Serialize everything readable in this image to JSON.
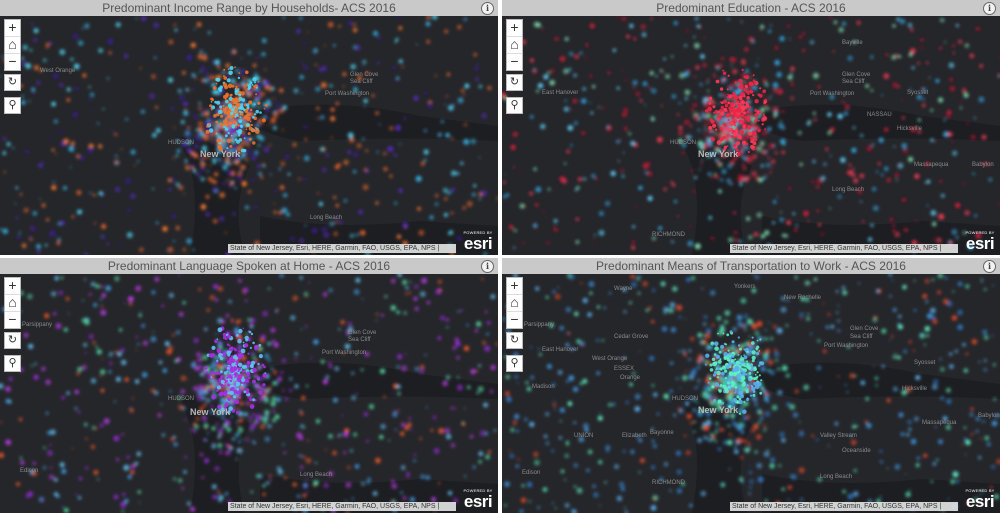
{
  "panels": [
    {
      "title": "Predominant Income Range by Households- ACS 2016",
      "palette": [
        "#35b3e5",
        "#4fd6f3",
        "#e8642a",
        "#ff7a2e",
        "#5b2bd1",
        "#3a1c9a"
      ],
      "core": "#f0712c",
      "places": {
        "west_orange": "West Orange",
        "glen_cove": "Glen Cove",
        "sea_cliff": "Sea Cliff",
        "port_washington": "Port Washington",
        "new_york": "New York",
        "hudson": "HUDSON",
        "long_beach": "Long Beach"
      }
    },
    {
      "title": "Predominant Education - ACS 2016",
      "palette": [
        "#e0203c",
        "#ff3b55",
        "#35a8e6",
        "#5ecbf5",
        "#7ee0b0",
        "#b01430"
      ],
      "core": "#e72847",
      "places": {
        "bayville": "Bayville",
        "glen_cove": "Glen Cove",
        "sea_cliff": "Sea Cliff",
        "port_washington": "Port Washington",
        "east_hanover": "East Hanover",
        "new_york": "New York",
        "hudson": "HUDSON",
        "syosset": "Syosset",
        "hicksville": "Hicksville",
        "long_beach": "Long Beach",
        "richmond": "RICHMOND",
        "nassau": "NASSAU",
        "babylon": "Babylon",
        "massapequa": "Massapequa"
      }
    },
    {
      "title": "Predominant Language Spoken at Home - ACS 2016",
      "palette": [
        "#3fa0e8",
        "#62c2f5",
        "#9a2be0",
        "#c13cf0",
        "#f05a2a",
        "#53d6a0"
      ],
      "core": "#a630e0",
      "places": {
        "parsippany": "Parsippany",
        "glen_cove": "Glen Cove",
        "sea_cliff": "Sea Cliff",
        "port_washington": "Port Washington",
        "new_york": "New York",
        "hudson": "HUDSON",
        "long_beach": "Long Beach",
        "edison": "Edison",
        "syosset": "Syosset"
      }
    },
    {
      "title": "Predominant Means of Transportation to Work - ACS 2016",
      "palette": [
        "#3f95e0",
        "#5bb0ef",
        "#2f7bc8",
        "#61f0c0",
        "#e84a2a",
        "#4fd3a4"
      ],
      "core": "#5ef0c2",
      "places": {
        "wayne": "Wayne",
        "yonkers": "Yonkers",
        "new_rochelle": "New Rochelle",
        "parsippany": "Parsippany",
        "cedar_grove": "Cedar Grove",
        "glen_cove": "Glen Cove",
        "sea_cliff": "Sea Cliff",
        "port_washington": "Port Washington",
        "east_hanover": "East Hanover",
        "west_orange": "West Orange",
        "orange": "Orange",
        "essex": "ESSEX",
        "madison": "Madison",
        "new_york": "New York",
        "union": "UNION",
        "elizabeth": "Elizabeth",
        "bayonne": "Bayonne",
        "richmond": "RICHMOND",
        "hicksville": "Hicksville",
        "syosset": "Syosset",
        "massapequa": "Massapequa",
        "oceanside": "Oceanside",
        "valley_stream": "Valley Stream",
        "long_beach": "Long Beach",
        "edison": "Edison",
        "babylon": "Babylon",
        "hudson": "HUDSON"
      }
    }
  ],
  "common": {
    "zoom_in": "+",
    "zoom_out": "−",
    "home_icon": "⌂",
    "refresh_icon": "↻",
    "search_icon": "⚲",
    "info_icon": "i",
    "attribution": "State of New Jersey, Esri, HERE, Garmin, FAO, USGS, EPA, NPS |",
    "esri_powered": "POWERED BY",
    "esri_word": "esri"
  }
}
